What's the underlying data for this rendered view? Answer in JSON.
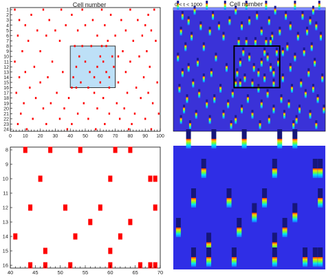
{
  "chart_data": [
    {
      "panel": "top-left",
      "type": "scatter",
      "title": "Cell number",
      "xlim": [
        0,
        100
      ],
      "ylim": [
        1,
        24
      ],
      "x_ticks": [
        0,
        10,
        20,
        30,
        40,
        50,
        60,
        70,
        80,
        90,
        100
      ],
      "y_ticks": [
        1,
        2,
        3,
        4,
        5,
        6,
        7,
        8,
        9,
        10,
        11,
        12,
        13,
        14,
        15,
        16,
        17,
        18,
        19,
        20,
        21,
        22,
        23,
        24
      ],
      "marker_color": "#ff0000",
      "highlight": {
        "x": [
          40,
          70
        ],
        "y": [
          8,
          16
        ],
        "fill": "#bde0f7",
        "stroke": "#333333"
      },
      "points": [
        [
          3,
          1
        ],
        [
          22,
          1
        ],
        [
          34,
          1
        ],
        [
          48,
          1
        ],
        [
          61,
          1
        ],
        [
          80,
          1
        ],
        [
          96,
          1
        ],
        [
          14,
          2
        ],
        [
          41,
          2
        ],
        [
          67,
          2
        ],
        [
          92,
          2
        ],
        [
          6,
          3
        ],
        [
          26,
          3
        ],
        [
          55,
          3
        ],
        [
          74,
          3
        ],
        [
          85,
          3
        ],
        [
          10,
          4
        ],
        [
          37,
          4
        ],
        [
          50,
          4
        ],
        [
          63,
          4
        ],
        [
          90,
          4
        ],
        [
          18,
          5
        ],
        [
          30,
          5
        ],
        [
          45,
          5
        ],
        [
          77,
          5
        ],
        [
          94,
          5
        ],
        [
          5,
          6
        ],
        [
          24,
          6
        ],
        [
          58,
          6
        ],
        [
          70,
          6
        ],
        [
          88,
          6
        ],
        [
          12,
          7
        ],
        [
          33,
          7
        ],
        [
          65,
          7
        ],
        [
          82,
          7
        ],
        [
          97,
          7
        ],
        [
          43,
          8
        ],
        [
          48,
          8
        ],
        [
          54,
          8
        ],
        [
          61,
          8
        ],
        [
          64,
          8
        ],
        [
          8,
          9
        ],
        [
          20,
          9
        ],
        [
          75,
          9
        ],
        [
          91,
          9
        ],
        [
          46,
          10
        ],
        [
          60,
          10
        ],
        [
          68,
          10
        ],
        [
          72,
          10
        ],
        [
          86,
          10
        ],
        [
          3,
          11
        ],
        [
          28,
          11
        ],
        [
          50,
          11
        ],
        [
          62,
          11
        ],
        [
          80,
          11
        ],
        [
          16,
          12
        ],
        [
          44,
          12
        ],
        [
          58,
          12
        ],
        [
          69,
          12
        ],
        [
          93,
          12
        ],
        [
          10,
          13
        ],
        [
          35,
          13
        ],
        [
          53,
          13
        ],
        [
          64,
          13
        ],
        [
          77,
          13
        ],
        [
          6,
          14
        ],
        [
          25,
          14
        ],
        [
          42,
          14
        ],
        [
          56,
          14
        ],
        [
          66,
          14
        ],
        [
          89,
          14
        ],
        [
          20,
          15
        ],
        [
          47,
          15
        ],
        [
          60,
          15
        ],
        [
          72,
          15
        ],
        [
          98,
          15
        ],
        [
          13,
          16
        ],
        [
          41,
          16
        ],
        [
          44,
          16
        ],
        [
          52,
          16
        ],
        [
          66,
          16
        ],
        [
          84,
          16
        ],
        [
          4,
          17
        ],
        [
          31,
          17
        ],
        [
          56,
          17
        ],
        [
          78,
          17
        ],
        [
          92,
          17
        ],
        [
          17,
          18
        ],
        [
          39,
          18
        ],
        [
          62,
          18
        ],
        [
          87,
          18
        ],
        [
          9,
          19
        ],
        [
          27,
          19
        ],
        [
          49,
          19
        ],
        [
          71,
          19
        ],
        [
          95,
          19
        ],
        [
          22,
          20
        ],
        [
          36,
          20
        ],
        [
          58,
          20
        ],
        [
          76,
          20
        ],
        [
          7,
          21
        ],
        [
          45,
          21
        ],
        [
          66,
          21
        ],
        [
          83,
          21
        ],
        [
          99,
          21
        ],
        [
          15,
          22
        ],
        [
          33,
          22
        ],
        [
          52,
          22
        ],
        [
          73,
          22
        ],
        [
          90,
          22
        ],
        [
          5,
          23
        ],
        [
          24,
          23
        ],
        [
          41,
          23
        ],
        [
          63,
          23
        ],
        [
          81,
          23
        ],
        [
          11,
          24
        ],
        [
          38,
          24
        ],
        [
          57,
          24
        ],
        [
          79,
          24
        ],
        [
          94,
          24
        ]
      ]
    },
    {
      "panel": "top-right",
      "type": "heatmap",
      "title": "Cell number",
      "subtitle": "0 < t < 1000",
      "background": "#3a32d8",
      "frame": {
        "x": [
          40,
          70
        ],
        "y": [
          8,
          16
        ],
        "stroke": "#000000"
      }
    },
    {
      "panel": "bottom-left",
      "type": "scatter",
      "xlim": [
        40,
        70
      ],
      "ylim": [
        8,
        16
      ],
      "x_ticks": [
        40,
        45,
        50,
        55,
        60,
        65,
        70
      ],
      "y_ticks": [
        8,
        9,
        10,
        11,
        12,
        13,
        14,
        15,
        16
      ],
      "marker_color": "#ff0000",
      "points": [
        [
          43,
          8
        ],
        [
          48,
          8
        ],
        [
          54,
          8
        ],
        [
          61,
          8
        ],
        [
          64,
          8
        ],
        [
          46,
          10
        ],
        [
          60,
          10
        ],
        [
          68,
          10
        ],
        [
          69,
          10
        ],
        [
          44,
          12
        ],
        [
          51,
          12
        ],
        [
          58,
          12
        ],
        [
          69,
          12
        ],
        [
          56,
          13
        ],
        [
          64,
          13
        ],
        [
          41,
          14
        ],
        [
          53,
          14
        ],
        [
          62,
          14
        ],
        [
          47,
          15
        ],
        [
          60,
          15
        ],
        [
          44,
          16
        ],
        [
          47,
          16
        ],
        [
          52,
          16
        ],
        [
          60,
          16
        ],
        [
          66,
          16
        ],
        [
          68,
          16
        ],
        [
          69,
          16
        ]
      ]
    },
    {
      "panel": "bottom-right",
      "type": "heatmap",
      "background": "#2f2ee6",
      "note": "zoomed view of framed region"
    }
  ]
}
